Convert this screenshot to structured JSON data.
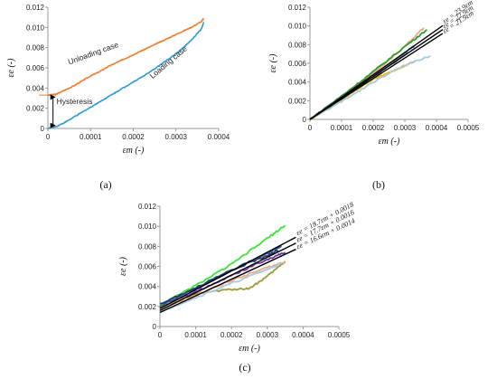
{
  "chart_data": [
    {
      "panel": "(a)",
      "type": "line",
      "xlabel": "ε_m (-)",
      "ylabel": "ε_e (-)",
      "xlim": [
        0,
        0.0004
      ],
      "ylim": [
        0,
        0.012
      ],
      "xticks": [
        "0",
        "0.0001",
        "0.0002",
        "0.0003",
        "0.0004"
      ],
      "yticks": [
        "0",
        "0.002",
        "0.004",
        "0.006",
        "0.008",
        "0.010",
        "0.012"
      ],
      "grid": false,
      "series": [
        {
          "name": "Unloading case",
          "color": "#ED7D31",
          "x": [
            0,
            2e-05,
            4e-05,
            6e-05,
            8e-05,
            0.0001,
            0.00012,
            0.00014,
            0.00016,
            0.00018,
            0.0002,
            0.00022,
            0.00024,
            0.00026,
            0.00028,
            0.0003,
            0.00032,
            0.00034,
            0.00036,
            0.000365
          ],
          "y": [
            0.0033,
            0.0034,
            0.0038,
            0.0042,
            0.0047,
            0.0052,
            0.0056,
            0.0061,
            0.0065,
            0.0069,
            0.0073,
            0.0077,
            0.0081,
            0.0085,
            0.0089,
            0.0093,
            0.0097,
            0.0101,
            0.0106,
            0.0109
          ]
        },
        {
          "name": "Loading case",
          "color": "#2E9BD6",
          "x": [
            0,
            2e-05,
            4e-05,
            6e-05,
            8e-05,
            0.0001,
            0.00012,
            0.00014,
            0.00016,
            0.00018,
            0.0002,
            0.00022,
            0.00024,
            0.00026,
            0.00028,
            0.0003,
            0.00032,
            0.00034,
            0.00036,
            0.000365
          ],
          "y": [
            0,
            0.0002,
            0.0006,
            0.0011,
            0.0016,
            0.0021,
            0.0026,
            0.0031,
            0.0036,
            0.0041,
            0.0046,
            0.0051,
            0.0056,
            0.0062,
            0.0068,
            0.0074,
            0.0081,
            0.0089,
            0.0099,
            0.0105
          ]
        }
      ],
      "annotations": [
        "Unloading case",
        "Loading case",
        "Hysteresis"
      ]
    },
    {
      "panel": "(b)",
      "type": "line",
      "xlabel": "ε_m (-)",
      "ylabel": "ε_e (-)",
      "xlim": [
        0,
        0.0005
      ],
      "ylim": [
        0,
        0.012
      ],
      "xticks": [
        "0",
        "0.0001",
        "0.0002",
        "0.0003",
        "0.0004",
        "0.0005"
      ],
      "yticks": [
        "0",
        "0.002",
        "0.004",
        "0.006",
        "0.008",
        "0.010",
        "0.012"
      ],
      "grid": false,
      "fit_lines": [
        {
          "label": "εe = 23.9εm",
          "slope": 23.9,
          "intercept": 0,
          "x_end": 0.00042
        },
        {
          "label": "εe = 22.9εm",
          "slope": 22.9,
          "intercept": 0,
          "x_end": 0.00042
        },
        {
          "label": "εe = 21.9εm",
          "slope": 21.9,
          "intercept": 0,
          "x_end": 0.00042
        }
      ],
      "series": [
        {
          "color": "#F4A582",
          "x": [
            0,
            0.0001,
            0.0002,
            0.0003,
            0.00036
          ],
          "y": [
            0,
            0.0024,
            0.0049,
            0.0078,
            0.0098
          ]
        },
        {
          "color": "#2CA02C",
          "x": [
            0,
            0.0001,
            0.0002,
            0.0003,
            0.00037
          ],
          "y": [
            0,
            0.0025,
            0.0051,
            0.0078,
            0.0096
          ]
        },
        {
          "color": "#4A7BB7",
          "x": [
            0,
            0.0001,
            0.0002,
            0.0003,
            0.00033
          ],
          "y": [
            0,
            0.0024,
            0.0047,
            0.0071,
            0.0079
          ]
        },
        {
          "color": "#E6B800",
          "x": [
            0,
            0.0001,
            0.0002,
            0.00027,
            0.00033
          ],
          "y": [
            0,
            0.0021,
            0.0043,
            0.0053,
            0.0062
          ]
        },
        {
          "color": "#A6C8E0",
          "x": [
            0,
            0.0001,
            0.0002,
            0.0003,
            0.00038
          ],
          "y": [
            0,
            0.0019,
            0.004,
            0.0058,
            0.0068
          ]
        },
        {
          "color": "#7F7F7F",
          "x": [
            0,
            0.0001,
            0.0002,
            0.0003
          ],
          "y": [
            0,
            0.0022,
            0.0046,
            0.0069
          ]
        }
      ]
    },
    {
      "panel": "(c)",
      "type": "line",
      "xlabel": "ε_m (-)",
      "ylabel": "ε_e (-)",
      "xlim": [
        0,
        0.0005
      ],
      "ylim": [
        0,
        0.012
      ],
      "xticks": [
        "0",
        "0.0001",
        "0.0002",
        "0.0003",
        "0.0004",
        "0.0005"
      ],
      "yticks": [
        "0",
        "0.002",
        "0.004",
        "0.006",
        "0.008",
        "0.010",
        "0.012"
      ],
      "grid": false,
      "fit_lines": [
        {
          "label": "εe = 18.7εm + 0.0018",
          "slope": 18.7,
          "intercept": 0.0018,
          "x_end": 0.00038
        },
        {
          "label": "εe = 17.7εm + 0.0016",
          "slope": 17.7,
          "intercept": 0.0016,
          "x_end": 0.00038
        },
        {
          "label": "εe = 16.6εm + 0.0014",
          "slope": 16.6,
          "intercept": 0.0014,
          "x_end": 0.00038
        }
      ],
      "series": [
        {
          "color": "#39E639",
          "x": [
            0,
            0.0001,
            0.0002,
            0.0003,
            0.00035
          ],
          "y": [
            0.0021,
            0.0041,
            0.0062,
            0.0088,
            0.0101
          ]
        },
        {
          "color": "#2F5597",
          "x": [
            0,
            0.0001,
            0.0002,
            0.0003,
            0.00034
          ],
          "y": [
            0.002,
            0.0038,
            0.0056,
            0.0073,
            0.008
          ]
        },
        {
          "color": "#7030A0",
          "x": [
            0,
            0.0001,
            0.0002,
            0.0003,
            0.00035
          ],
          "y": [
            0.0019,
            0.0035,
            0.0051,
            0.0067,
            0.0074
          ]
        },
        {
          "color": "#9E9A3C",
          "x": [
            0,
            0.0001,
            0.0002,
            0.00025,
            0.0003,
            0.00035
          ],
          "y": [
            0.0018,
            0.0033,
            0.0037,
            0.0038,
            0.005,
            0.0065
          ]
        },
        {
          "color": "#F4A582",
          "x": [
            0,
            0.0001,
            0.0002,
            0.0003,
            0.00035
          ],
          "y": [
            0.0017,
            0.0031,
            0.0046,
            0.0059,
            0.0064
          ]
        },
        {
          "color": "#A6C8E0",
          "x": [
            0,
            0.0001,
            0.0002,
            0.0003,
            0.00034
          ],
          "y": [
            0.0015,
            0.0029,
            0.0043,
            0.0057,
            0.0063
          ]
        },
        {
          "color": "#1F3A68",
          "x": [
            0,
            0.0001,
            0.0002,
            0.0003,
            0.00033
          ],
          "y": [
            0.0022,
            0.0039,
            0.0056,
            0.0071,
            0.0076
          ]
        }
      ]
    }
  ]
}
